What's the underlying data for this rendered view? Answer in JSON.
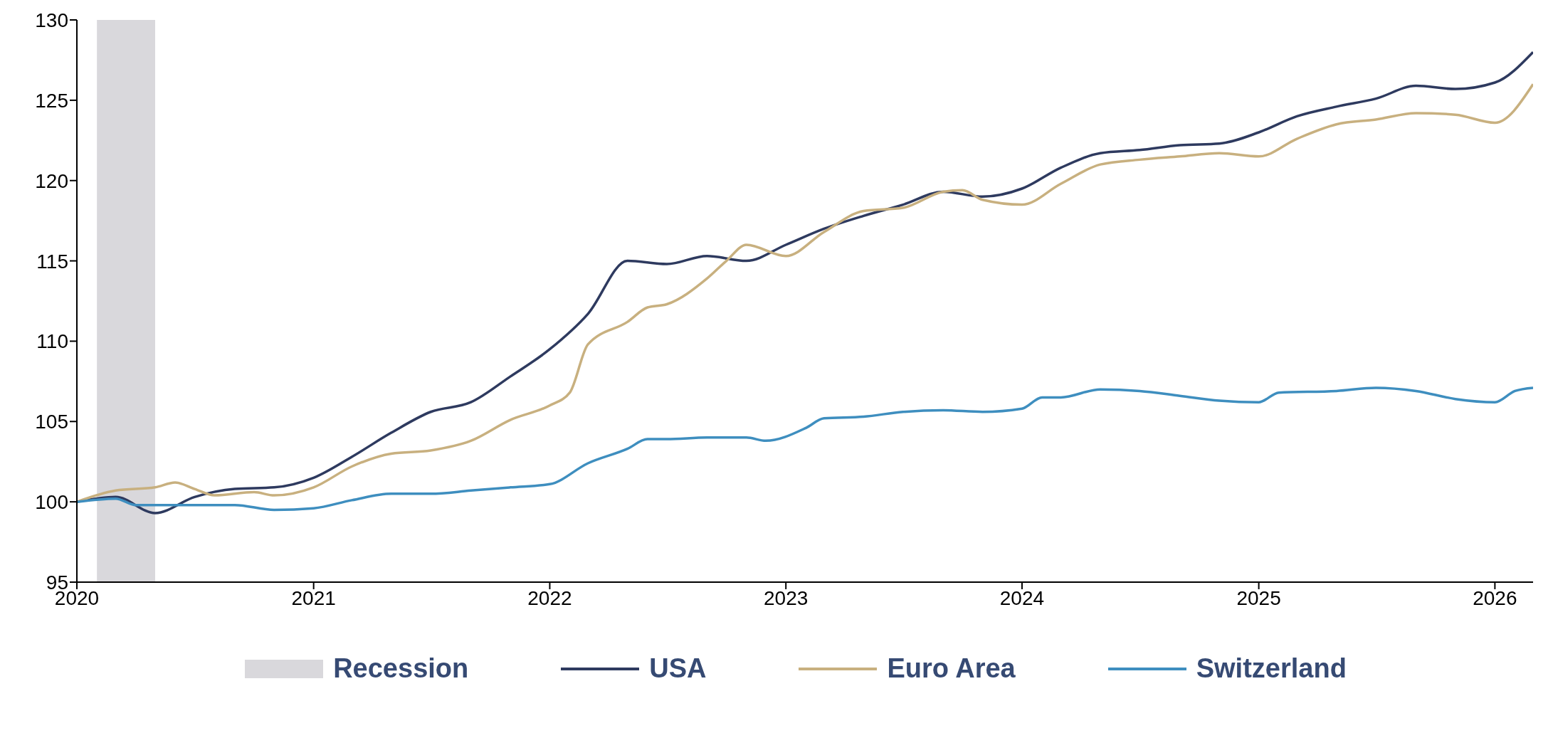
{
  "chart_data": {
    "type": "line",
    "xlim": [
      "2020-01",
      "2026-03"
    ],
    "xticks": [
      "2020",
      "2021",
      "2022",
      "2023",
      "2024",
      "2025",
      "2026"
    ],
    "ylim": [
      95,
      130
    ],
    "yticks": [
      95,
      100,
      105,
      110,
      115,
      120,
      125,
      130
    ],
    "legend": "bottom",
    "marker": "none",
    "line_style": "solid",
    "bands": [
      {
        "axis": "x",
        "from": "2020-02",
        "to": "2020-05",
        "label": "Recession",
        "color": "#d9d8dc"
      }
    ],
    "series": [
      {
        "name": "USA",
        "color": "#2e3a5f",
        "x": [
          "2020-01",
          "2020-03",
          "2020-05",
          "2020-07",
          "2020-09",
          "2020-11",
          "2021-01",
          "2021-03",
          "2021-05",
          "2021-07",
          "2021-09",
          "2021-11",
          "2022-01",
          "2022-03",
          "2022-05",
          "2022-07",
          "2022-09",
          "2022-11",
          "2023-01",
          "2023-03",
          "2023-05",
          "2023-07",
          "2023-09",
          "2023-11",
          "2024-01",
          "2024-03",
          "2024-05",
          "2024-07",
          "2024-09",
          "2024-11",
          "2025-01",
          "2025-03",
          "2025-05",
          "2025-07",
          "2025-09",
          "2025-11",
          "2026-01",
          "2026-03"
        ],
        "values": [
          100,
          100.3,
          99.3,
          100.3,
          100.8,
          100.9,
          101.5,
          102.8,
          104.3,
          105.6,
          106.2,
          107.8,
          109.5,
          111.7,
          115.0,
          114.8,
          115.3,
          115.0,
          116.0,
          117.0,
          117.8,
          118.5,
          119.3,
          119.0,
          119.5,
          120.8,
          121.7,
          121.9,
          122.2,
          122.3,
          123.0,
          124.0,
          124.6,
          125.1,
          125.9,
          125.7,
          126.1,
          128.0
        ]
      },
      {
        "name": "Euro Area",
        "color": "#c8b07f",
        "x": [
          "2020-01",
          "2020-03",
          "2020-05",
          "2020-06",
          "2020-07",
          "2020-08",
          "2020-10",
          "2020-11",
          "2021-01",
          "2021-03",
          "2021-05",
          "2021-07",
          "2021-09",
          "2021-11",
          "2022-01",
          "2022-02",
          "2022-03",
          "2022-05",
          "2022-06",
          "2022-07",
          "2022-09",
          "2022-10",
          "2022-11",
          "2023-01",
          "2023-03",
          "2023-05",
          "2023-07",
          "2023-09",
          "2023-10",
          "2023-11",
          "2024-01",
          "2024-03",
          "2024-05",
          "2024-07",
          "2024-09",
          "2024-11",
          "2025-01",
          "2025-03",
          "2025-05",
          "2025-07",
          "2025-09",
          "2025-11",
          "2026-01",
          "2026-03"
        ],
        "values": [
          100,
          100.7,
          100.9,
          101.2,
          100.8,
          100.4,
          100.6,
          100.4,
          100.9,
          102.2,
          103.0,
          103.2,
          103.8,
          105.1,
          106.0,
          106.8,
          109.8,
          111.2,
          112.1,
          112.3,
          113.9,
          115.0,
          116.0,
          115.3,
          116.8,
          118.1,
          118.3,
          119.3,
          119.4,
          118.8,
          118.5,
          119.8,
          121.0,
          121.3,
          121.5,
          121.7,
          121.5,
          122.6,
          123.5,
          123.8,
          124.2,
          124.1,
          123.6,
          126.0
        ]
      },
      {
        "name": "Switzerland",
        "color": "#3e8ebf",
        "x": [
          "2020-01",
          "2020-03",
          "2020-04",
          "2020-07",
          "2020-09",
          "2020-11",
          "2021-01",
          "2021-03",
          "2021-05",
          "2021-07",
          "2021-09",
          "2021-11",
          "2022-01",
          "2022-03",
          "2022-05",
          "2022-06",
          "2022-07",
          "2022-09",
          "2022-11",
          "2022-12",
          "2023-02",
          "2023-03",
          "2023-05",
          "2023-07",
          "2023-09",
          "2023-11",
          "2024-01",
          "2024-02",
          "2024-03",
          "2024-05",
          "2024-07",
          "2024-09",
          "2024-11",
          "2025-01",
          "2025-02",
          "2025-05",
          "2025-07",
          "2025-09",
          "2025-11",
          "2026-01",
          "2026-02",
          "2026-03"
        ],
        "values": [
          100,
          100.2,
          99.8,
          99.8,
          99.8,
          99.5,
          99.6,
          100.1,
          100.5,
          100.5,
          100.7,
          100.9,
          101.1,
          102.4,
          103.3,
          103.9,
          103.9,
          104.0,
          104.0,
          103.8,
          104.6,
          105.2,
          105.3,
          105.6,
          105.7,
          105.6,
          105.8,
          106.5,
          106.5,
          107.0,
          106.9,
          106.6,
          106.3,
          106.2,
          106.8,
          106.9,
          107.1,
          106.9,
          106.4,
          106.2,
          106.9,
          107.1
        ]
      }
    ]
  }
}
